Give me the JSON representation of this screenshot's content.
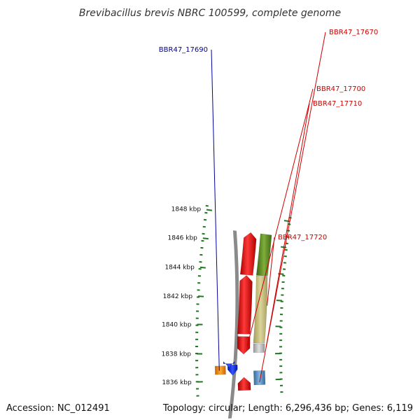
{
  "title": "Brevibacillus brevis NBRC 100599, complete genome",
  "footer": {
    "accession": "Accession: NC_012491",
    "topology": "Topology: circular; Length: 6,296,436 bp; Genes: 6,119"
  },
  "ticks": [
    {
      "label": "1836 kbp"
    },
    {
      "label": "1838 kbp"
    },
    {
      "label": "1840 kbp"
    },
    {
      "label": "1842 kbp"
    },
    {
      "label": "1844 kbp"
    },
    {
      "label": "1846 kbp"
    },
    {
      "label": "1848 kbp"
    }
  ],
  "gene_labels": [
    {
      "text": "BBR47_17670",
      "color": "#cc0000"
    },
    {
      "text": "BBR47_17690",
      "color": "#000099"
    },
    {
      "text": "BBR47_17700",
      "color": "#cc0000"
    },
    {
      "text": "BBR47_17710",
      "color": "#cc0000"
    },
    {
      "text": "BBR47_17720",
      "color": "#cc0000"
    }
  ],
  "colors": {
    "forward_gene": "#ee1111",
    "reverse_gene": "#1133ee",
    "gray_gene": "#bbbbbb",
    "orange_gene": "#ff8800",
    "steelblue_gene": "#4a88c0",
    "olive_gene": "#c4bd78",
    "green_gene": "#5c8a22",
    "backbone": "#888888",
    "tick_green": "#227722"
  }
}
